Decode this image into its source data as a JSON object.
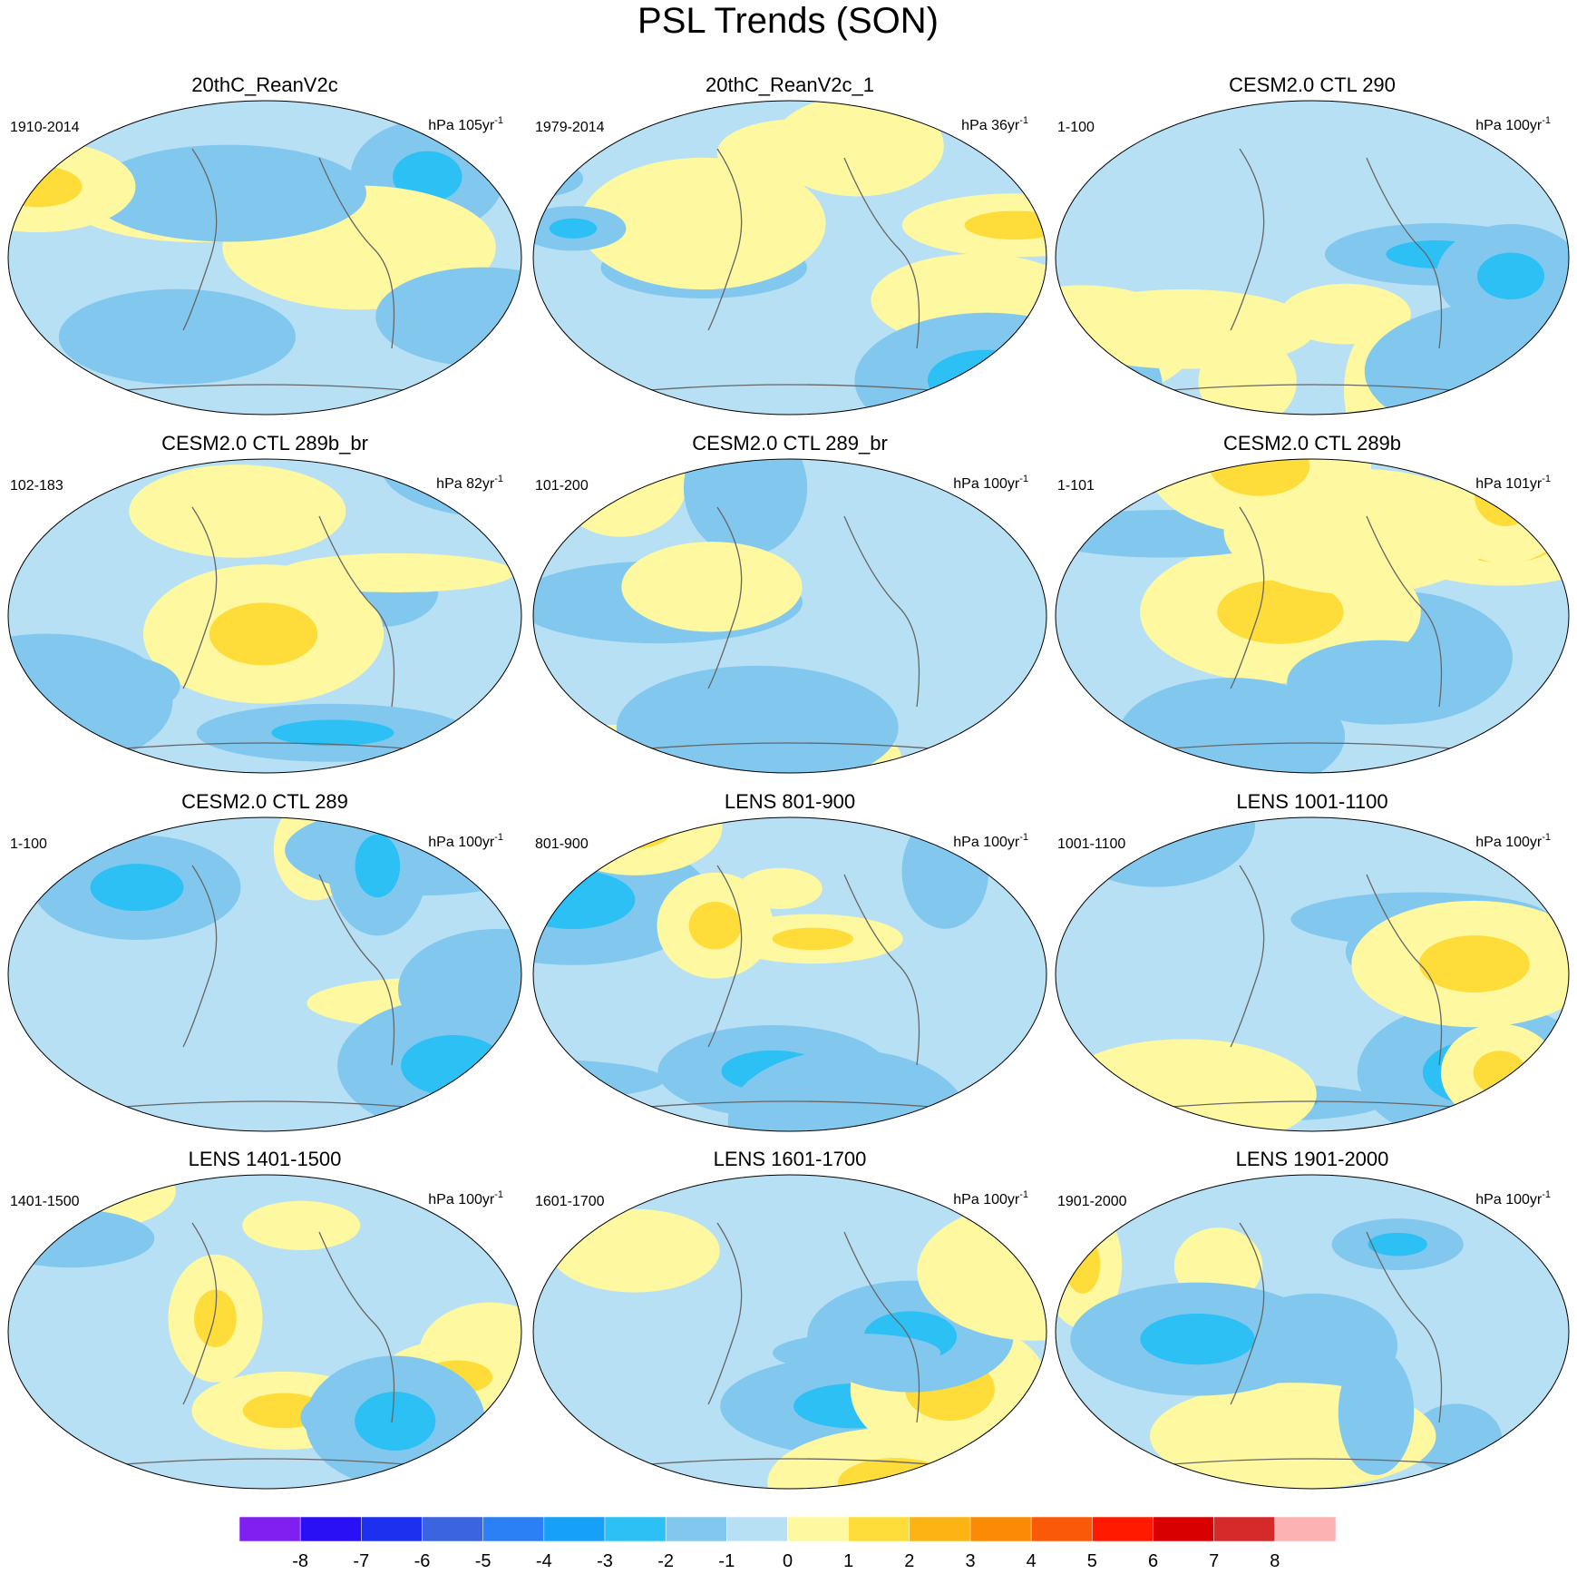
{
  "title": "PSL Trends (SON)",
  "panels": [
    {
      "title": "20thC_ReanV2c",
      "period": "1910-2014",
      "units": "hPa 105yr",
      "units_exp": "-1"
    },
    {
      "title": "20thC_ReanV2c_1",
      "period": "1979-2014",
      "units": "hPa 36yr",
      "units_exp": "-1"
    },
    {
      "title": "CESM2.0 CTL 290",
      "period": "1-100",
      "units": "hPa 100yr",
      "units_exp": "-1"
    },
    {
      "title": "CESM2.0 CTL 289b_br",
      "period": "102-183",
      "units": "hPa 82yr",
      "units_exp": "-1"
    },
    {
      "title": "CESM2.0 CTL 289_br",
      "period": "101-200",
      "units": "hPa 100yr",
      "units_exp": "-1"
    },
    {
      "title": "CESM2.0 CTL 289b",
      "period": "1-101",
      "units": "hPa 101yr",
      "units_exp": "-1"
    },
    {
      "title": "CESM2.0 CTL 289",
      "period": "1-100",
      "units": "hPa 100yr",
      "units_exp": "-1"
    },
    {
      "title": "LENS 801-900",
      "period": "801-900",
      "units": "hPa 100yr",
      "units_exp": "-1"
    },
    {
      "title": "LENS 1001-1100",
      "period": "1001-1100",
      "units": "hPa 100yr",
      "units_exp": "-1"
    },
    {
      "title": "LENS 1401-1500",
      "period": "1401-1500",
      "units": "hPa 100yr",
      "units_exp": "-1"
    },
    {
      "title": "LENS 1601-1700",
      "period": "1601-1700",
      "units": "hPa 100yr",
      "units_exp": "-1"
    },
    {
      "title": "LENS 1901-2000",
      "period": "1901-2000",
      "units": "hPa 100yr",
      "units_exp": "-1"
    }
  ],
  "colorbar": {
    "colors": [
      "#8020f0",
      "#2a10f5",
      "#1e30ef",
      "#3a64e0",
      "#2c80f5",
      "#16a0f7",
      "#2cc0f5",
      "#82c8ee",
      "#b8e0f5",
      "#fef8a0",
      "#fedc3a",
      "#fcb414",
      "#fb8a05",
      "#fa5a08",
      "#ff1a00",
      "#d80000",
      "#d42a2a",
      "#fcb2b2"
    ],
    "ticks": [
      -8,
      -7,
      -6,
      -5,
      -4,
      -3,
      -2,
      -1,
      0,
      1,
      2,
      3,
      4,
      5,
      6,
      7,
      8
    ]
  }
}
